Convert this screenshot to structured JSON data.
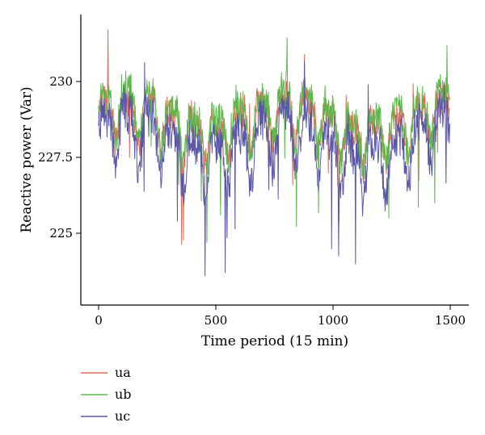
{
  "chart_data": {
    "type": "line",
    "title": "",
    "xlabel": "Time period (15 min)",
    "ylabel": "Reactive power (Var)",
    "xlim": [
      -70,
      1530
    ],
    "ylim": [
      223.5,
      232.1
    ],
    "x_ticks": [
      0,
      500,
      1000,
      1500
    ],
    "y_ticks": [
      225,
      227.5,
      230
    ],
    "y_tick_labels": [
      "225",
      "227.5",
      "230"
    ],
    "grid": false,
    "legend_position": "bottom-left",
    "n_points": 1500,
    "series": [
      {
        "name": "ua",
        "color": "#e06a55",
        "mean": 228.6,
        "spread": 1.2,
        "peak": [
          40,
          231.7
        ],
        "dip": [
          520,
          226.0
        ]
      },
      {
        "name": "ub",
        "color": "#5cb84a",
        "mean": 228.7,
        "spread": 1.3,
        "peak": [
          35,
          231.3
        ],
        "dip": [
          520,
          225.6
        ]
      },
      {
        "name": "uc",
        "color": "#5b57a8",
        "mean": 227.9,
        "spread": 1.5,
        "peak": [
          1150,
          229.9
        ],
        "dip": [
          540,
          223.7
        ]
      }
    ]
  }
}
